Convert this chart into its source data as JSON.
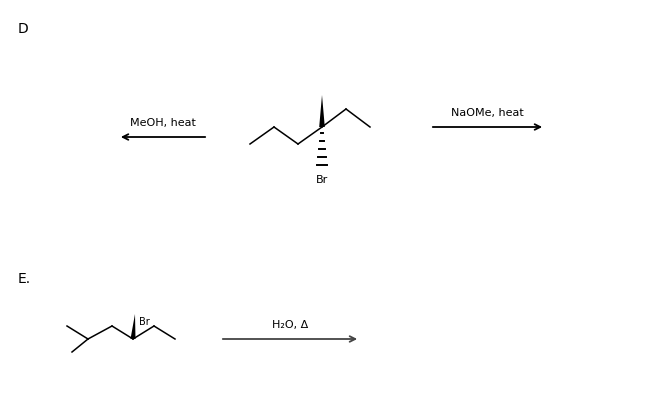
{
  "bg_color": "#ffffff",
  "label_D": "D",
  "label_E": "E.",
  "meoh_label": "MeOH, heat",
  "naome_label": "NaOMe, heat",
  "h2o_label": "H₂O, Δ",
  "br_label": "Br",
  "font_size": 8,
  "label_font_size": 10,
  "figw": 6.6,
  "figh": 4.06,
  "dpi": 100
}
